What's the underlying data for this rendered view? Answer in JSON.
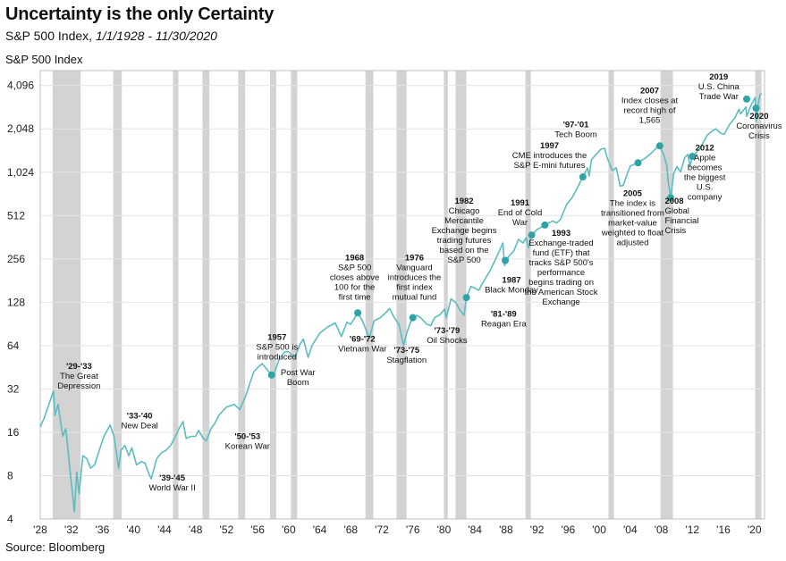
{
  "chart_data": {
    "type": "line",
    "title": "Uncertainty is the only Certainty",
    "subtitle_prefix": "S&P 500 Index,",
    "subtitle_dates": "1/1/1928 - 11/30/2020",
    "ylabel": "S&P 500 Index",
    "source": "Source: Bloomberg",
    "y_scale": "log2",
    "ylim": [
      4,
      5200
    ],
    "xlim": [
      1928,
      2021.3
    ],
    "y_ticks": [
      {
        "value": 4,
        "label": "4"
      },
      {
        "value": 8,
        "label": "8"
      },
      {
        "value": 16,
        "label": "16"
      },
      {
        "value": 32,
        "label": "32"
      },
      {
        "value": 64,
        "label": "64"
      },
      {
        "value": 128,
        "label": "128"
      },
      {
        "value": 256,
        "label": "256"
      },
      {
        "value": 512,
        "label": "512"
      },
      {
        "value": 1024,
        "label": "1,024"
      },
      {
        "value": 2048,
        "label": "2,048"
      },
      {
        "value": 4096,
        "label": "4,096"
      }
    ],
    "x_ticks": [
      {
        "value": 1928,
        "label": "'28"
      },
      {
        "value": 1932,
        "label": "'32"
      },
      {
        "value": 1936,
        "label": "'36"
      },
      {
        "value": 1940,
        "label": "'40"
      },
      {
        "value": 1944,
        "label": "'44"
      },
      {
        "value": 1948,
        "label": "'48"
      },
      {
        "value": 1952,
        "label": "'52"
      },
      {
        "value": 1956,
        "label": "'56"
      },
      {
        "value": 1960,
        "label": "'60"
      },
      {
        "value": 1964,
        "label": "'64"
      },
      {
        "value": 1968,
        "label": "'68"
      },
      {
        "value": 1972,
        "label": "'72"
      },
      {
        "value": 1976,
        "label": "'76"
      },
      {
        "value": 1980,
        "label": "'80"
      },
      {
        "value": 1984,
        "label": "'84"
      },
      {
        "value": 1988,
        "label": "'88"
      },
      {
        "value": 1992,
        "label": "'92"
      },
      {
        "value": 1996,
        "label": "'96"
      },
      {
        "value": 2000,
        "label": "'00"
      },
      {
        "value": 2004,
        "label": "'04"
      },
      {
        "value": 2008,
        "label": "'08"
      },
      {
        "value": 2012,
        "label": "'12"
      },
      {
        "value": 2016,
        "label": "'16"
      },
      {
        "value": 2020,
        "label": "'20"
      }
    ],
    "recessions": [
      [
        1929.6,
        1933.2
      ],
      [
        1937.4,
        1938.5
      ],
      [
        1945.1,
        1945.8
      ],
      [
        1948.9,
        1949.8
      ],
      [
        1953.5,
        1954.4
      ],
      [
        1957.6,
        1958.4
      ],
      [
        1960.3,
        1961.1
      ],
      [
        1969.9,
        1970.9
      ],
      [
        1973.9,
        1975.2
      ],
      [
        1980.0,
        1980.5
      ],
      [
        1981.5,
        1982.9
      ],
      [
        1990.5,
        1991.2
      ],
      [
        2001.2,
        2001.9
      ],
      [
        2007.9,
        2009.5
      ],
      [
        2020.1,
        2020.9
      ]
    ],
    "series": [
      {
        "color": "#5bbdc0",
        "points": [
          [
            1928.0,
            17.5
          ],
          [
            1928.5,
            20
          ],
          [
            1929.0,
            24
          ],
          [
            1929.7,
            31
          ],
          [
            1929.9,
            21
          ],
          [
            1930.3,
            25
          ],
          [
            1930.9,
            15
          ],
          [
            1931.3,
            17
          ],
          [
            1931.9,
            8
          ],
          [
            1932.4,
            4.5
          ],
          [
            1932.7,
            8.5
          ],
          [
            1933.0,
            6
          ],
          [
            1933.5,
            11
          ],
          [
            1934.0,
            10.5
          ],
          [
            1934.5,
            9
          ],
          [
            1935.0,
            9.5
          ],
          [
            1935.6,
            12
          ],
          [
            1936.2,
            15
          ],
          [
            1937.0,
            18
          ],
          [
            1937.5,
            15
          ],
          [
            1938.1,
            9
          ],
          [
            1938.4,
            12
          ],
          [
            1938.9,
            13
          ],
          [
            1939.4,
            11
          ],
          [
            1939.8,
            12.5
          ],
          [
            1940.4,
            9.5
          ],
          [
            1941.0,
            10
          ],
          [
            1941.5,
            9.8
          ],
          [
            1942.0,
            8.2
          ],
          [
            1942.3,
            7.6
          ],
          [
            1943.0,
            10.5
          ],
          [
            1943.6,
            11.5
          ],
          [
            1944.2,
            12
          ],
          [
            1944.8,
            13
          ],
          [
            1945.4,
            15
          ],
          [
            1946.0,
            17.5
          ],
          [
            1946.4,
            19
          ],
          [
            1946.8,
            14.5
          ],
          [
            1947.4,
            15
          ],
          [
            1948.0,
            15
          ],
          [
            1948.4,
            16.5
          ],
          [
            1949.0,
            14.5
          ],
          [
            1949.4,
            14
          ],
          [
            1950.0,
            17
          ],
          [
            1950.5,
            18.5
          ],
          [
            1951.0,
            21
          ],
          [
            1952.0,
            24
          ],
          [
            1953.0,
            25
          ],
          [
            1953.7,
            23
          ],
          [
            1954.5,
            29
          ],
          [
            1955.0,
            35
          ],
          [
            1955.5,
            42
          ],
          [
            1956.0,
            45
          ],
          [
            1956.6,
            48
          ],
          [
            1957.0,
            45
          ],
          [
            1957.8,
            40
          ],
          [
            1958.2,
            42
          ],
          [
            1958.8,
            52
          ],
          [
            1959.5,
            58
          ],
          [
            1960.0,
            58
          ],
          [
            1960.8,
            53
          ],
          [
            1961.5,
            66
          ],
          [
            1961.9,
            71
          ],
          [
            1962.5,
            53
          ],
          [
            1963.0,
            64
          ],
          [
            1964.0,
            78
          ],
          [
            1965.0,
            86
          ],
          [
            1966.0,
            92
          ],
          [
            1966.8,
            74
          ],
          [
            1967.5,
            93
          ],
          [
            1968.0,
            90
          ],
          [
            1968.9,
            108
          ],
          [
            1969.5,
            95
          ],
          [
            1970.4,
            72
          ],
          [
            1971.0,
            95
          ],
          [
            1971.8,
            100
          ],
          [
            1972.5,
            108
          ],
          [
            1973.0,
            116
          ],
          [
            1973.6,
            100
          ],
          [
            1974.2,
            90
          ],
          [
            1974.8,
            64
          ],
          [
            1975.2,
            78
          ],
          [
            1975.6,
            90
          ],
          [
            1976.0,
            100
          ],
          [
            1976.5,
            104
          ],
          [
            1977.0,
            100
          ],
          [
            1977.8,
            90
          ],
          [
            1978.3,
            88
          ],
          [
            1978.8,
            100
          ],
          [
            1979.5,
            105
          ],
          [
            1980.1,
            115
          ],
          [
            1980.3,
            100
          ],
          [
            1980.9,
            135
          ],
          [
            1981.5,
            128
          ],
          [
            1982.1,
            112
          ],
          [
            1982.6,
            104
          ],
          [
            1982.9,
            138
          ],
          [
            1983.5,
            165
          ],
          [
            1984.0,
            160
          ],
          [
            1984.5,
            155
          ],
          [
            1985.0,
            175
          ],
          [
            1985.9,
            210
          ],
          [
            1986.5,
            245
          ],
          [
            1987.0,
            280
          ],
          [
            1987.6,
            330
          ],
          [
            1987.8,
            230
          ],
          [
            1988.3,
            265
          ],
          [
            1989.0,
            290
          ],
          [
            1989.6,
            350
          ],
          [
            1990.2,
            330
          ],
          [
            1990.6,
            360
          ],
          [
            1990.9,
            305
          ],
          [
            1991.3,
            375
          ],
          [
            1992.0,
            410
          ],
          [
            1993.0,
            440
          ],
          [
            1994.0,
            470
          ],
          [
            1994.5,
            455
          ],
          [
            1995.0,
            480
          ],
          [
            1995.8,
            610
          ],
          [
            1996.5,
            680
          ],
          [
            1997.0,
            760
          ],
          [
            1997.9,
            950
          ],
          [
            1998.5,
            1100
          ],
          [
            1998.7,
            960
          ],
          [
            1999.0,
            1250
          ],
          [
            1999.6,
            1360
          ],
          [
            2000.2,
            1480
          ],
          [
            2000.7,
            1500
          ],
          [
            2001.0,
            1300
          ],
          [
            2001.7,
            1050
          ],
          [
            2002.2,
            1100
          ],
          [
            2002.7,
            820
          ],
          [
            2003.1,
            830
          ],
          [
            2003.6,
            990
          ],
          [
            2004.0,
            1130
          ],
          [
            2005.0,
            1190
          ],
          [
            2006.0,
            1290
          ],
          [
            2006.8,
            1400
          ],
          [
            2007.4,
            1520
          ],
          [
            2007.8,
            1560
          ],
          [
            2008.3,
            1360
          ],
          [
            2008.7,
            1150
          ],
          [
            2008.9,
            880
          ],
          [
            2009.2,
            680
          ],
          [
            2009.6,
            1000
          ],
          [
            2010.0,
            1120
          ],
          [
            2010.5,
            1030
          ],
          [
            2011.0,
            1290
          ],
          [
            2011.4,
            1360
          ],
          [
            2011.7,
            1130
          ],
          [
            2012.0,
            1320
          ],
          [
            2012.5,
            1400
          ],
          [
            2013.0,
            1500
          ],
          [
            2013.9,
            1850
          ],
          [
            2014.5,
            1970
          ],
          [
            2015.0,
            2050
          ],
          [
            2015.7,
            1900
          ],
          [
            2016.1,
            1880
          ],
          [
            2016.8,
            2200
          ],
          [
            2017.5,
            2450
          ],
          [
            2018.0,
            2800
          ],
          [
            2018.2,
            2600
          ],
          [
            2018.9,
            2900
          ],
          [
            2019.0,
            2500
          ],
          [
            2019.5,
            2950
          ],
          [
            2019.9,
            3230
          ],
          [
            2020.1,
            3380
          ],
          [
            2020.2,
            2300
          ],
          [
            2020.5,
            3100
          ],
          [
            2020.7,
            3500
          ],
          [
            2020.92,
            3620
          ]
        ]
      }
    ],
    "events": [
      {
        "x": 1957.8,
        "y": 40,
        "dot": true,
        "bold": "1957",
        "lines": [
          "S&P 500 is",
          "introduced"
        ],
        "label_x": 1958.5,
        "label_y": 70,
        "anchor": "middle"
      },
      {
        "x": 1968.9,
        "y": 108,
        "dot": true,
        "bold": "1968",
        "lines": [
          "S&P 500",
          "closes above",
          "100 for the",
          "first time"
        ],
        "label_x": 1968.5,
        "label_y": 250,
        "anchor": "middle"
      },
      {
        "x": 1976.0,
        "y": 100,
        "dot": true,
        "bold": "1976",
        "lines": [
          "Vanguard",
          "introduces the",
          "first index",
          "mutual fund"
        ],
        "label_x": 1976.2,
        "label_y": 250,
        "anchor": "middle"
      },
      {
        "x": 1982.9,
        "y": 138,
        "dot": true,
        "bold": "1982",
        "lines": [
          "Chicago",
          "Mercantile",
          "Exchange begins",
          "trading futures",
          "based on the",
          "S&P 500"
        ],
        "label_x": 1982.6,
        "label_y": 620,
        "anchor": "middle"
      },
      {
        "x": 1987.9,
        "y": 250,
        "dot": true,
        "bold": "1987",
        "lines": [
          "Black Monday"
        ],
        "label_x": 1988.7,
        "label_y": 175,
        "anchor": "middle"
      },
      {
        "x": 1991.3,
        "y": 375,
        "dot": true,
        "bold": "1991",
        "lines": [
          "End of Cold",
          "War"
        ],
        "label_x": 1989.8,
        "label_y": 600,
        "anchor": "middle"
      },
      {
        "x": 1993.0,
        "y": 440,
        "dot": true,
        "bold": "1993",
        "lines": [
          "Exchange-traded",
          "fund  (ETF) that",
          "tracks S&P 500's",
          "performance",
          "begins trading on",
          "the American Stock",
          "Exchange"
        ],
        "label_x": 1995.1,
        "label_y": 370,
        "anchor": "middle"
      },
      {
        "x": 1997.9,
        "y": 950,
        "dot": true,
        "bold": "1997",
        "lines": [
          "CME introduces the",
          "S&P E-mini futures"
        ],
        "label_x": 1993.6,
        "label_y": 1500,
        "anchor": "middle"
      },
      {
        "x": 2005.0,
        "y": 1190,
        "dot": true,
        "bold": "2005",
        "lines": [
          "The index is",
          "transitioned from",
          "market-value",
          "weighted to float",
          "adjusted"
        ],
        "label_x": 2004.3,
        "label_y": 700,
        "anchor": "middle"
      },
      {
        "x": 2007.8,
        "y": 1560,
        "dot": true,
        "bold": "2007",
        "lines": [
          "Index closes at",
          "record high of",
          "1,565"
        ],
        "label_x": 2006.5,
        "label_y": 3600,
        "anchor": "middle"
      },
      {
        "x": 2009.2,
        "y": 680,
        "dot": true,
        "bold": "2008",
        "lines": [
          "Global",
          "Financial",
          "Crisis"
        ],
        "label_x": 2008.8,
        "label_y": 620,
        "anchor": "start",
        "label_x_start": 2008.45
      },
      {
        "x": 2012.0,
        "y": 1320,
        "dot": true,
        "bold": "2012",
        "lines": [
          "Apple",
          "becomes",
          "the biggest",
          "U.S.",
          "company"
        ],
        "label_x": 2013.6,
        "label_y": 1450,
        "anchor": "middle"
      },
      {
        "x": 2019.0,
        "y": 3300,
        "dot": true,
        "bold": "2019",
        "lines": [
          "U.S. China",
          "Trade War"
        ],
        "label_x": 2015.4,
        "label_y": 4500,
        "anchor": "middle"
      },
      {
        "x": 2020.2,
        "y": 2850,
        "dot": true,
        "bold": "2020",
        "lines": [
          "Coronavirus",
          "Crisis"
        ],
        "label_x": 2020.6,
        "label_y": 2400,
        "anchor": "middle"
      }
    ],
    "period_labels": [
      {
        "bold": "'29-'33",
        "lines": [
          "The Great",
          "Depression"
        ],
        "label_x": 1933.0,
        "label_y": 44
      },
      {
        "bold": "'33-'40",
        "lines": [
          "New Deal"
        ],
        "label_x": 1940.8,
        "label_y": 20
      },
      {
        "bold": "'39-'45",
        "lines": [
          "World War II"
        ],
        "label_x": 1945.0,
        "label_y": 7.4
      },
      {
        "bold": "'50-'53",
        "lines": [
          "Korean War"
        ],
        "label_x": 1954.7,
        "label_y": 14.4
      },
      {
        "bold": "",
        "lines": [
          "Post War",
          "Boom"
        ],
        "label_x": 1961.2,
        "label_y": 40
      },
      {
        "bold": "'69-'72",
        "lines": [
          "Vietnam War"
        ],
        "label_x": 1969.5,
        "label_y": 68
      },
      {
        "bold": "'73-'75",
        "lines": [
          "Stagflation"
        ],
        "label_x": 1975.2,
        "label_y": 57
      },
      {
        "bold": "'73-'79",
        "lines": [
          "Oil Shocks"
        ],
        "label_x": 1980.4,
        "label_y": 78
      },
      {
        "bold": "'81-'89",
        "lines": [
          "Reagan Era"
        ],
        "label_x": 1987.7,
        "label_y": 102
      },
      {
        "bold": "'97-'01",
        "lines": [
          "Tech Boom"
        ],
        "label_x": 1997.0,
        "label_y": 2100
      }
    ]
  }
}
